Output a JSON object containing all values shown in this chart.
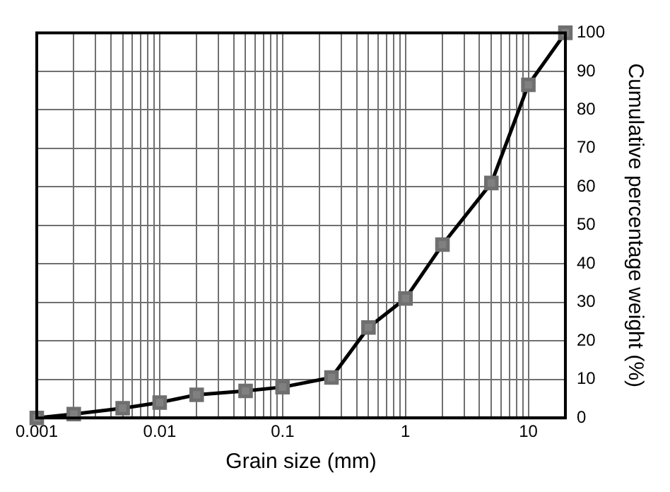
{
  "chart_data": {
    "type": "line",
    "xlabel": "Grain size (mm)",
    "ylabel": "Cumulative percentage weight (%)",
    "x": [
      0.001,
      0.002,
      0.005,
      0.01,
      0.02,
      0.05,
      0.1,
      0.25,
      0.5,
      1,
      2,
      5,
      10,
      20
    ],
    "series": [
      {
        "color": "#000000",
        "values": [
          0,
          1,
          2.5,
          4,
          6,
          7,
          8,
          10.5,
          23.5,
          31,
          45,
          61,
          86.5,
          100
        ]
      }
    ],
    "log": "x",
    "xlim": [
      0.001,
      20
    ],
    "xticks": [
      0.001,
      {
        "value": 0.002,
        "label": null
      },
      {
        "value": 0.003,
        "label": null
      },
      {
        "value": 0.004,
        "label": null
      },
      {
        "value": 0.005,
        "label": null
      },
      {
        "value": 0.006,
        "label": null
      },
      {
        "value": 0.007,
        "label": null
      },
      {
        "value": 0.008,
        "label": null
      },
      {
        "value": 0.009,
        "label": null
      },
      0.01,
      {
        "value": 0.02,
        "label": null
      },
      {
        "value": 0.03,
        "label": null
      },
      {
        "value": 0.04,
        "label": null
      },
      {
        "value": 0.05,
        "label": null
      },
      {
        "value": 0.06,
        "label": null
      },
      {
        "value": 0.07,
        "label": null
      },
      {
        "value": 0.08,
        "label": null
      },
      {
        "value": 0.09,
        "label": null
      },
      0.1,
      {
        "value": 0.2,
        "label": null
      },
      {
        "value": 0.3,
        "label": null
      },
      {
        "value": 0.4,
        "label": null
      },
      {
        "value": 0.5,
        "label": null
      },
      {
        "value": 0.6,
        "label": null
      },
      {
        "value": 0.7,
        "label": null
      },
      {
        "value": 0.8,
        "label": null
      },
      {
        "value": 0.9,
        "label": null
      },
      1,
      {
        "value": 2,
        "label": null
      },
      {
        "value": 3,
        "label": null
      },
      {
        "value": 4,
        "label": null
      },
      {
        "value": 5,
        "label": null
      },
      {
        "value": 6,
        "label": null
      },
      {
        "value": 7,
        "label": null
      },
      {
        "value": 8,
        "label": null
      },
      {
        "value": 9,
        "label": null
      },
      10,
      {
        "value": 20,
        "label": null
      }
    ],
    "ylim": [
      0,
      100
    ],
    "yticks": [
      0,
      10,
      20,
      30,
      40,
      50,
      60,
      70,
      80,
      90,
      100
    ],
    "grid": true,
    "marker": "square",
    "line_style": "solid",
    "legend": false
  }
}
